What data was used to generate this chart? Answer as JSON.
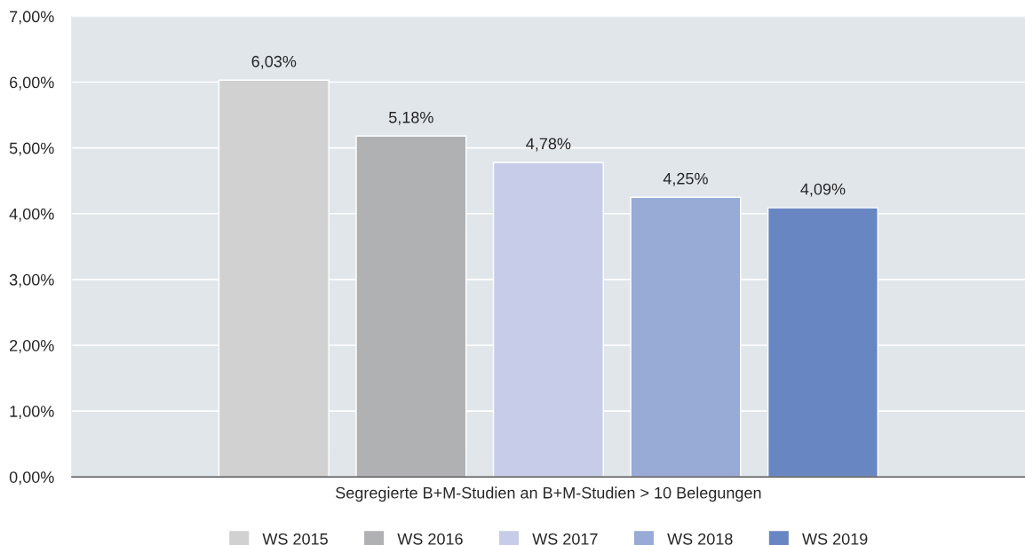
{
  "chart_data": {
    "type": "bar",
    "categories": [
      "Segregierte B+M-Studien an B+M-Studien > 10 Belegungen"
    ],
    "series": [
      {
        "name": "WS 2015",
        "color": "#d0d1d0",
        "values": [
          6.03
        ],
        "value_labels": [
          "6,03%"
        ]
      },
      {
        "name": "WS 2016",
        "color": "#b0b1b2",
        "values": [
          5.18
        ],
        "value_labels": [
          "5,18%"
        ]
      },
      {
        "name": "WS 2017",
        "color": "#c7cde8",
        "values": [
          4.78
        ],
        "value_labels": [
          "4,78%"
        ]
      },
      {
        "name": "WS 2018",
        "color": "#98aad6",
        "values": [
          4.25
        ],
        "value_labels": [
          "4,25%"
        ]
      },
      {
        "name": "WS 2019",
        "color": "#6886c2",
        "values": [
          4.09
        ],
        "value_labels": [
          "4,09%"
        ]
      }
    ],
    "ylim": [
      0,
      7
    ],
    "yticks": [
      {
        "value": 0,
        "label": "0,00%"
      },
      {
        "value": 1,
        "label": "1,00%"
      },
      {
        "value": 2,
        "label": "2,00%"
      },
      {
        "value": 3,
        "label": "3,00%"
      },
      {
        "value": 4,
        "label": "4,00%"
      },
      {
        "value": 5,
        "label": "5,00%"
      },
      {
        "value": 6,
        "label": "6,00%"
      },
      {
        "value": 7,
        "label": "7,00%"
      }
    ],
    "grid": "y",
    "legend": "bottom"
  }
}
